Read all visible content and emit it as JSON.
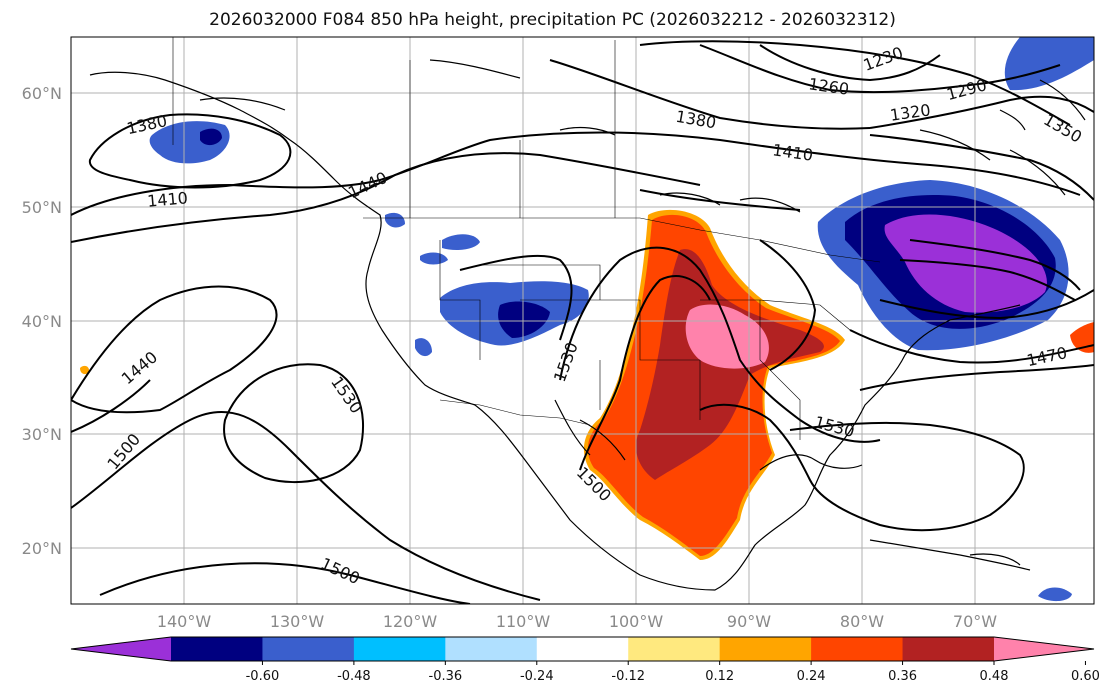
{
  "title": "2026032000 F084 850 hPa height, precipitation PC (2026032212 - 2026032312)",
  "lat_labels": [
    "60°N",
    "50°N",
    "40°N",
    "30°N",
    "20°N"
  ],
  "lon_labels": [
    "140°W",
    "130°W",
    "120°W",
    "110°W",
    "100°W",
    "90°W",
    "80°W",
    "70°W"
  ],
  "contour_labels": [
    "1380",
    "1410",
    "1440",
    "1440",
    "1500",
    "1530",
    "1530",
    "1500",
    "1500",
    "1380",
    "1410",
    "1260",
    "1230",
    "1290",
    "1320",
    "1350",
    "1470",
    "1530"
  ],
  "colorbar": {
    "colors": [
      "#9b30d8",
      "#000080",
      "#3a5fcd",
      "#00bfff",
      "#b0e0ff",
      "#ffffff",
      "#ffe97f",
      "#ffa500",
      "#ff4500",
      "#b22222",
      "#ff82ab"
    ],
    "tick_labels": [
      "-0.60",
      "-0.48",
      "-0.36",
      "-0.24",
      "-0.12",
      "0.12",
      "0.24",
      "0.36",
      "0.48",
      "0.60"
    ]
  }
}
